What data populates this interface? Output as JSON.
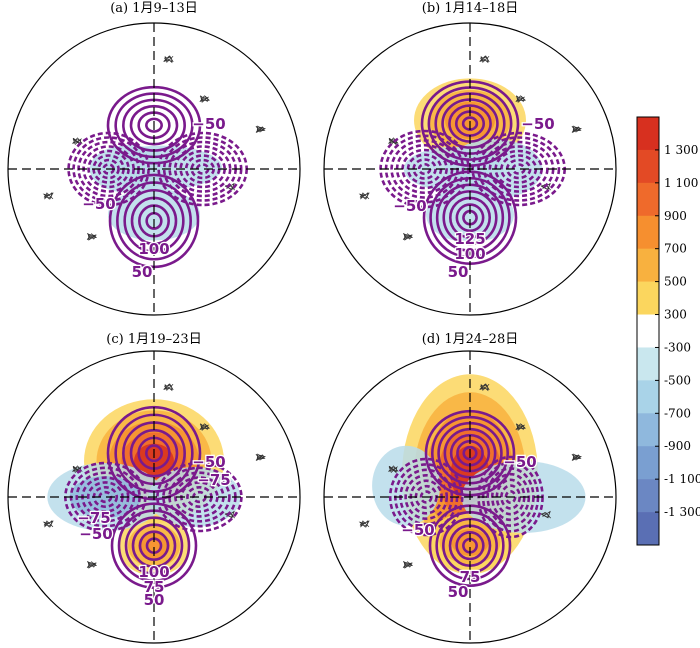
{
  "panels": [
    {
      "title": "(a) 1月9–13日",
      "contour_labels": [
        "−50",
        "−50",
        "100",
        "50"
      ],
      "shading": [
        {
          "lon": 0,
          "colat": 28,
          "intensity": -1,
          "rx": 46,
          "ry": 26
        },
        {
          "lon": 100,
          "colat": 5,
          "intensity": -1,
          "rx": 60,
          "ry": 22
        },
        {
          "lon": -90,
          "colat": 15,
          "intensity": -1,
          "rx": 40,
          "ry": 24
        }
      ],
      "contours": [
        {
          "sign": 1,
          "lon": 180,
          "colat": 27,
          "levels": 6,
          "ax": 46,
          "ay": 38
        },
        {
          "sign": 1,
          "lon": 0,
          "colat": 32,
          "levels": 6,
          "ax": 44,
          "ay": 46
        },
        {
          "sign": -1,
          "lon": 90,
          "colat": 30,
          "levels": 8,
          "ax": 44,
          "ay": 36
        },
        {
          "sign": -1,
          "lon": -90,
          "colat": 28,
          "levels": 8,
          "ax": 40,
          "ay": 36
        }
      ]
    },
    {
      "title": "(b) 1月14–18日",
      "contour_labels": [
        "−50",
        "−50",
        "125",
        "100",
        "50"
      ],
      "shading": [
        {
          "lon": 180,
          "colat": 30,
          "intensity": 3,
          "rx": 56,
          "ry": 42
        },
        {
          "lon": 0,
          "colat": 28,
          "intensity": -1,
          "rx": 44,
          "ry": 28
        },
        {
          "lon": -90,
          "colat": 10,
          "intensity": -1,
          "rx": 50,
          "ry": 22
        },
        {
          "lon": 90,
          "colat": 15,
          "intensity": -1,
          "rx": 48,
          "ry": 30
        }
      ],
      "contours": [
        {
          "sign": 1,
          "lon": 180,
          "colat": 28,
          "levels": 7,
          "ax": 48,
          "ay": 42
        },
        {
          "sign": 1,
          "lon": 0,
          "colat": 30,
          "levels": 7,
          "ax": 46,
          "ay": 46
        },
        {
          "sign": -1,
          "lon": 90,
          "colat": 30,
          "levels": 8,
          "ax": 46,
          "ay": 36
        },
        {
          "sign": -1,
          "lon": -90,
          "colat": 28,
          "levels": 8,
          "ax": 44,
          "ay": 38
        }
      ]
    },
    {
      "title": "(c) 1月19–23日",
      "contour_labels": [
        "−50",
        "−75",
        "−50",
        "−75",
        "100",
        "75",
        "50"
      ],
      "shading": [
        {
          "lon": 180,
          "colat": 22,
          "intensity": 5,
          "rx": 70,
          "ry": 62
        },
        {
          "lon": 0,
          "colat": 30,
          "intensity": 3,
          "rx": 36,
          "ry": 30
        },
        {
          "lon": -90,
          "colat": 30,
          "intensity": -2,
          "rx": 58,
          "ry": 34
        },
        {
          "lon": 90,
          "colat": 25,
          "intensity": -1,
          "rx": 46,
          "ry": 30
        }
      ],
      "contours": [
        {
          "sign": 1,
          "lon": 180,
          "colat": 27,
          "levels": 6,
          "ax": 46,
          "ay": 46
        },
        {
          "sign": 1,
          "lon": 0,
          "colat": 30,
          "levels": 6,
          "ax": 42,
          "ay": 42
        },
        {
          "sign": -1,
          "lon": 90,
          "colat": 28,
          "levels": 7,
          "ax": 42,
          "ay": 34
        },
        {
          "sign": -1,
          "lon": -90,
          "colat": 30,
          "levels": 7,
          "ax": 40,
          "ay": 34
        }
      ]
    },
    {
      "title": "(d) 1月24–28日",
      "contour_labels": [
        "−50",
        "−50",
        "75",
        "50"
      ],
      "shading": [
        {
          "lon": 180,
          "colat": 14,
          "intensity": 5,
          "rx": 68,
          "ry": 100
        },
        {
          "lon": 0,
          "colat": 28,
          "intensity": 3,
          "rx": 42,
          "ry": 30
        },
        {
          "lon": 90,
          "colat": 33,
          "intensity": -1,
          "rx": 62,
          "ry": 36
        },
        {
          "lon": -100,
          "colat": 40,
          "intensity": -1,
          "rx": 34,
          "ry": 40
        }
      ],
      "contours": [
        {
          "sign": 1,
          "lon": 180,
          "colat": 27,
          "levels": 7,
          "ax": 44,
          "ay": 42
        },
        {
          "sign": 1,
          "lon": 0,
          "colat": 30,
          "levels": 6,
          "ax": 40,
          "ay": 40
        },
        {
          "sign": -1,
          "lon": 90,
          "colat": 25,
          "levels": 7,
          "ax": 32,
          "ay": 40
        },
        {
          "sign": -1,
          "lon": -90,
          "colat": 27,
          "levels": 7,
          "ax": 36,
          "ay": 38
        }
      ]
    }
  ],
  "colorbar": {
    "labels": [
      "1 300",
      "1 100",
      "900",
      "700",
      "500",
      "300",
      "-300",
      "-500",
      "-700",
      "-900",
      "-1 100",
      "-1 300"
    ],
    "colors": [
      "#d7301f",
      "#e34a25",
      "#ef6a2b",
      "#f68f2f",
      "#f8b13f",
      "#fbd65e",
      "#ffffff",
      "#c9e7ee",
      "#a9d3e8",
      "#8fb8dd",
      "#7a9fd1",
      "#6b87c3",
      "#5a6fb4"
    ]
  },
  "colors": {
    "contour": "#7a1a8c",
    "coast": "#333333",
    "frame": "#000000"
  }
}
